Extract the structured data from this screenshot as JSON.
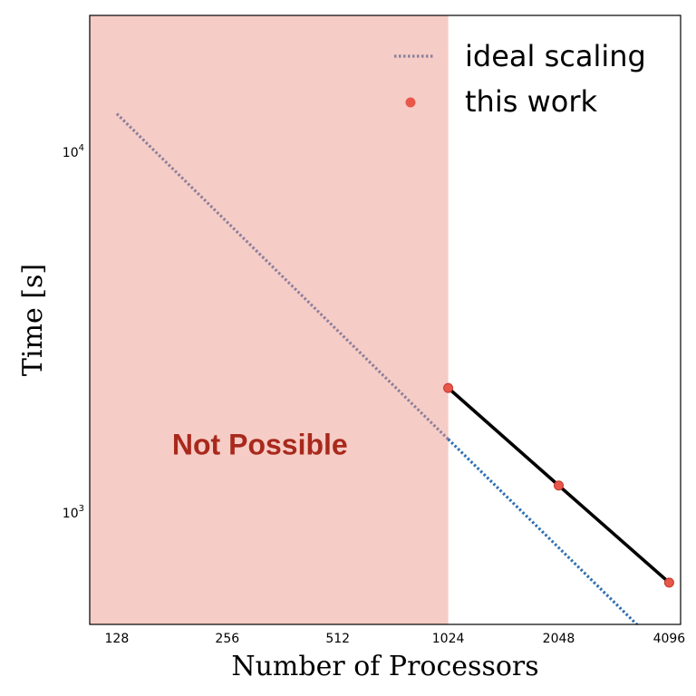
{
  "chart_data": {
    "type": "line",
    "xlabel": "Number of Processors",
    "ylabel": "Time [s]",
    "x_scale": "log2",
    "y_scale": "log10",
    "xlim": [
      108,
      4400
    ],
    "ylim": [
      490,
      24000
    ],
    "x_ticks": [
      128,
      256,
      512,
      1024,
      2048,
      4096
    ],
    "x_tick_labels": [
      "128",
      "256",
      "512",
      "1024",
      "2048",
      "4096"
    ],
    "y_ticks": [
      1000,
      10000
    ],
    "y_tick_labels": [
      {
        "base": "10",
        "exp": "3"
      },
      {
        "base": "10",
        "exp": "4"
      }
    ],
    "grid": false,
    "legend_position": "top-right",
    "series": [
      {
        "name": "ideal scaling",
        "style": "dotted",
        "x": [
          128,
          1024,
          3600
        ],
        "y": [
          12800,
          1600,
          455
        ],
        "color_in_region": "#8a7f9c",
        "color_out_region": "#2f6fb0"
      },
      {
        "name": "this work",
        "style": "solid+markers",
        "line_color": "#000000",
        "marker_color": "#e8574a",
        "x": [
          1024,
          2048,
          4096
        ],
        "y": [
          2220,
          1190,
          640
        ]
      }
    ],
    "regions": [
      {
        "label": "Not Possible",
        "x_from": 108,
        "x_to": 1024,
        "fill_color": "#f6ccc6",
        "label_color": "#a8291c"
      }
    ]
  }
}
